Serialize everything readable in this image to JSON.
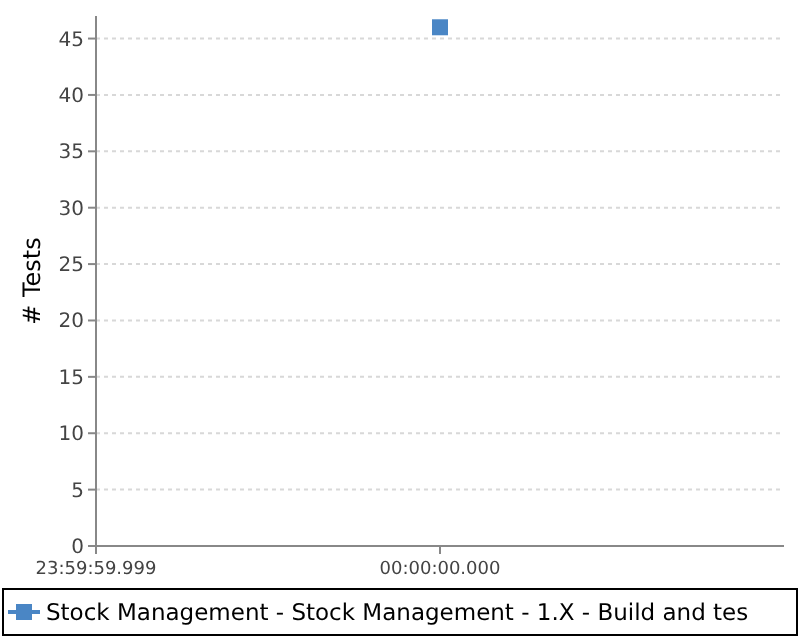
{
  "chart_data": {
    "type": "line",
    "ylabel": "# Tests",
    "categories": [
      "23:59:59.999",
      "00:00:00.000",
      null
    ],
    "series": [
      {
        "name": "Stock Management - Stock Management - 1.X - Build and tes",
        "color": "#4a86c5",
        "values": [
          null,
          46,
          null
        ]
      }
    ],
    "ylim": [
      0,
      47
    ],
    "yticks": [
      0,
      5,
      10,
      15,
      20,
      25,
      30,
      35,
      40,
      45
    ],
    "grid": "y",
    "legend": "bottom",
    "marker": "square",
    "line_style": "solid"
  }
}
